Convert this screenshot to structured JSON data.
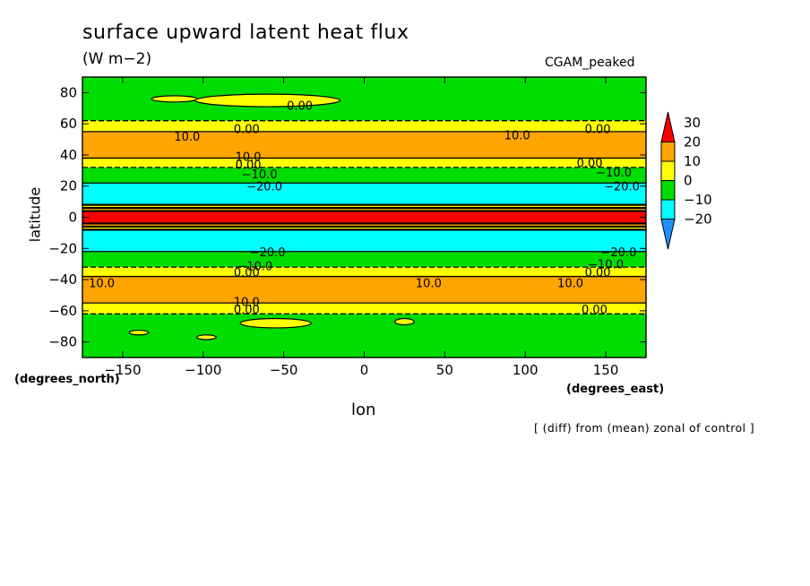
{
  "chart_data": {
    "type": "heatmap",
    "title": "surface upward latent heat flux",
    "units": "(W m−2)",
    "run_label": "CGAM_peaked",
    "xlabel": "lon",
    "ylabel": "latitude",
    "x_units": "(degrees_east)",
    "y_units": "(degrees_north)",
    "note": "[ (diff) from (mean) zonal of control ]",
    "xlim": [
      -175,
      175
    ],
    "ylim": [
      -90,
      90
    ],
    "x_ticks": [
      -150,
      -100,
      -50,
      0,
      50,
      100,
      150
    ],
    "y_ticks": [
      -80,
      -60,
      -40,
      -20,
      0,
      20,
      40,
      60,
      80
    ],
    "x_tick_labels": [
      "−150",
      "−100",
      "−50",
      "0",
      "50",
      "100",
      "150"
    ],
    "y_tick_labels": [
      "−80",
      "−60",
      "−40",
      "−20",
      "0",
      "20",
      "40",
      "60",
      "80"
    ],
    "colorbar": {
      "levels": [
        -20,
        -10,
        0,
        10,
        20,
        30
      ],
      "labels": [
        "30",
        "20",
        "10",
        "0",
        "−10",
        "−20"
      ],
      "colors": [
        "#1e90ff",
        "#00ffff",
        "#00dd00",
        "#ffff00",
        "#ffa500",
        "#ff0000"
      ]
    },
    "bands": [
      {
        "lat_from": 62,
        "lat_to": 90,
        "value": -5
      },
      {
        "lat_from": 55,
        "lat_to": 62,
        "value": 5
      },
      {
        "lat_from": 38,
        "lat_to": 55,
        "value": 15
      },
      {
        "lat_from": 32,
        "lat_to": 38,
        "value": 5
      },
      {
        "lat_from": 22,
        "lat_to": 32,
        "value": -5
      },
      {
        "lat_from": 8,
        "lat_to": 22,
        "value": -15
      },
      {
        "lat_from": 6,
        "lat_to": 8,
        "value": 5
      },
      {
        "lat_from": 4,
        "lat_to": 6,
        "value": 15
      },
      {
        "lat_from": -4,
        "lat_to": 4,
        "value": 35
      },
      {
        "lat_from": -6,
        "lat_to": -4,
        "value": 15
      },
      {
        "lat_from": -8,
        "lat_to": -6,
        "value": 5
      },
      {
        "lat_from": -22,
        "lat_to": -8,
        "value": -15
      },
      {
        "lat_from": -32,
        "lat_to": -22,
        "value": -5
      },
      {
        "lat_from": -38,
        "lat_to": -32,
        "value": 5
      },
      {
        "lat_from": -55,
        "lat_to": -38,
        "value": 15
      },
      {
        "lat_from": -62,
        "lat_to": -55,
        "value": 5
      },
      {
        "lat_from": -90,
        "lat_to": -62,
        "value": -5
      }
    ],
    "patches": [
      {
        "lon": -60,
        "lat": 75,
        "rx": 45,
        "ry": 4,
        "value": 5
      },
      {
        "lon": -118,
        "lat": 76,
        "rx": 14,
        "ry": 2,
        "value": 5
      },
      {
        "lon": -55,
        "lat": -68,
        "rx": 22,
        "ry": 3,
        "value": 5
      },
      {
        "lon": 25,
        "lat": -67,
        "rx": 6,
        "ry": 2,
        "value": 5
      },
      {
        "lon": -140,
        "lat": -74,
        "rx": 6,
        "ry": 1.5,
        "value": 5
      },
      {
        "lon": -98,
        "lat": -77,
        "rx": 6,
        "ry": 1.5,
        "value": 5
      }
    ],
    "contour_labels": [
      {
        "text": "0.00",
        "lon": -40,
        "lat": 72
      },
      {
        "text": "10.0",
        "lon": -110,
        "lat": 52
      },
      {
        "text": "0.00",
        "lon": -73,
        "lat": 57
      },
      {
        "text": "10.0",
        "lon": 95,
        "lat": 53
      },
      {
        "text": "0.00",
        "lon": 145,
        "lat": 57
      },
      {
        "text": "10.0",
        "lon": -72,
        "lat": 39
      },
      {
        "text": "0.00",
        "lon": -72,
        "lat": 34
      },
      {
        "text": "−10.0",
        "lon": -65,
        "lat": 28
      },
      {
        "text": "−20.0",
        "lon": -62,
        "lat": 20
      },
      {
        "text": "0.00",
        "lon": 140,
        "lat": 35
      },
      {
        "text": "−10.0",
        "lon": 155,
        "lat": 29
      },
      {
        "text": "−20.0",
        "lon": 160,
        "lat": 20
      },
      {
        "text": "−20.0",
        "lon": -60,
        "lat": -22
      },
      {
        "text": "−10.0",
        "lon": -68,
        "lat": -31
      },
      {
        "text": "0.00",
        "lon": -73,
        "lat": -35
      },
      {
        "text": "−20.0",
        "lon": 158,
        "lat": -22
      },
      {
        "text": "−10.0",
        "lon": 150,
        "lat": -30
      },
      {
        "text": "0.00",
        "lon": 145,
        "lat": -35
      },
      {
        "text": "10.0",
        "lon": -163,
        "lat": -42
      },
      {
        "text": "10.0",
        "lon": 40,
        "lat": -42
      },
      {
        "text": "10.0",
        "lon": 128,
        "lat": -42
      },
      {
        "text": "10.0",
        "lon": -73,
        "lat": -54
      },
      {
        "text": "0.00",
        "lon": -73,
        "lat": -59
      },
      {
        "text": "0.00",
        "lon": 143,
        "lat": -59
      }
    ]
  }
}
